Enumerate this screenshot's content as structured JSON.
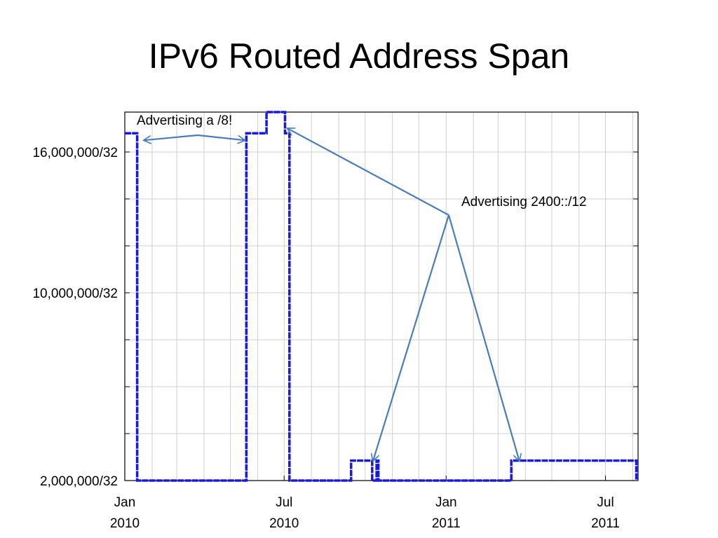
{
  "title": "IPv6 Routed Address Span",
  "chart_data": {
    "type": "line",
    "title": "",
    "xlabel": "",
    "ylabel": "",
    "x_range": [
      "2010-01-01",
      "2011-08-07"
    ],
    "ylim": [
      2000000,
      17700000
    ],
    "y_ticks": [
      {
        "value": 2000000,
        "label": "2,000,000/32"
      },
      {
        "value": 10000000,
        "label": "10,000,000/32"
      },
      {
        "value": 16000000,
        "label": "16,000,000/32"
      }
    ],
    "x_ticks": [
      {
        "date": "2010-01-01",
        "label": [
          "Jan",
          "2010"
        ]
      },
      {
        "date": "2010-07-01",
        "label": [
          "Jul",
          "2010"
        ]
      },
      {
        "date": "2011-01-01",
        "label": [
          "Jan",
          "2011"
        ]
      },
      {
        "date": "2011-07-01",
        "label": [
          "Jul",
          "2011"
        ]
      }
    ],
    "grid": true,
    "series": [
      {
        "color": "#1a1adc",
        "style": "step",
        "points": [
          {
            "x": "2010-01-01",
            "y": 16800000
          },
          {
            "x": "2010-01-15",
            "y": 16800000
          },
          {
            "x": "2010-01-15",
            "y": 2000000
          },
          {
            "x": "2010-05-19",
            "y": 2000000
          },
          {
            "x": "2010-05-19",
            "y": 16800000
          },
          {
            "x": "2010-06-11",
            "y": 16800000
          },
          {
            "x": "2010-06-11",
            "y": 17700000
          },
          {
            "x": "2010-07-02",
            "y": 17700000
          },
          {
            "x": "2010-07-02",
            "y": 16800000
          },
          {
            "x": "2010-07-07",
            "y": 16800000
          },
          {
            "x": "2010-07-07",
            "y": 2000000
          },
          {
            "x": "2010-09-15",
            "y": 2000000
          },
          {
            "x": "2010-09-15",
            "y": 2850000
          },
          {
            "x": "2010-10-09",
            "y": 2850000
          },
          {
            "x": "2010-10-09",
            "y": 2000000
          },
          {
            "x": "2010-10-14",
            "y": 2000000
          },
          {
            "x": "2010-10-14",
            "y": 2850000
          },
          {
            "x": "2010-10-16",
            "y": 2850000
          },
          {
            "x": "2010-10-16",
            "y": 2000000
          },
          {
            "x": "2011-03-16",
            "y": 2000000
          },
          {
            "x": "2011-03-16",
            "y": 2850000
          },
          {
            "x": "2011-08-05",
            "y": 2850000
          },
          {
            "x": "2011-08-05",
            "y": 2000000
          }
        ]
      }
    ],
    "annotations": [
      {
        "text": "Advertising a /8!",
        "arrows_to": [
          {
            "x": "2010-01-23",
            "y": 16500000
          },
          {
            "x": "2010-05-17",
            "y": 16500000
          }
        ]
      },
      {
        "text": "Advertising 2400::/12",
        "arrows_to": [
          {
            "x": "2010-07-05",
            "y": 17000000
          },
          {
            "x": "2010-10-10",
            "y": 2850000
          },
          {
            "x": "2011-03-25",
            "y": 2850000
          }
        ]
      }
    ]
  }
}
